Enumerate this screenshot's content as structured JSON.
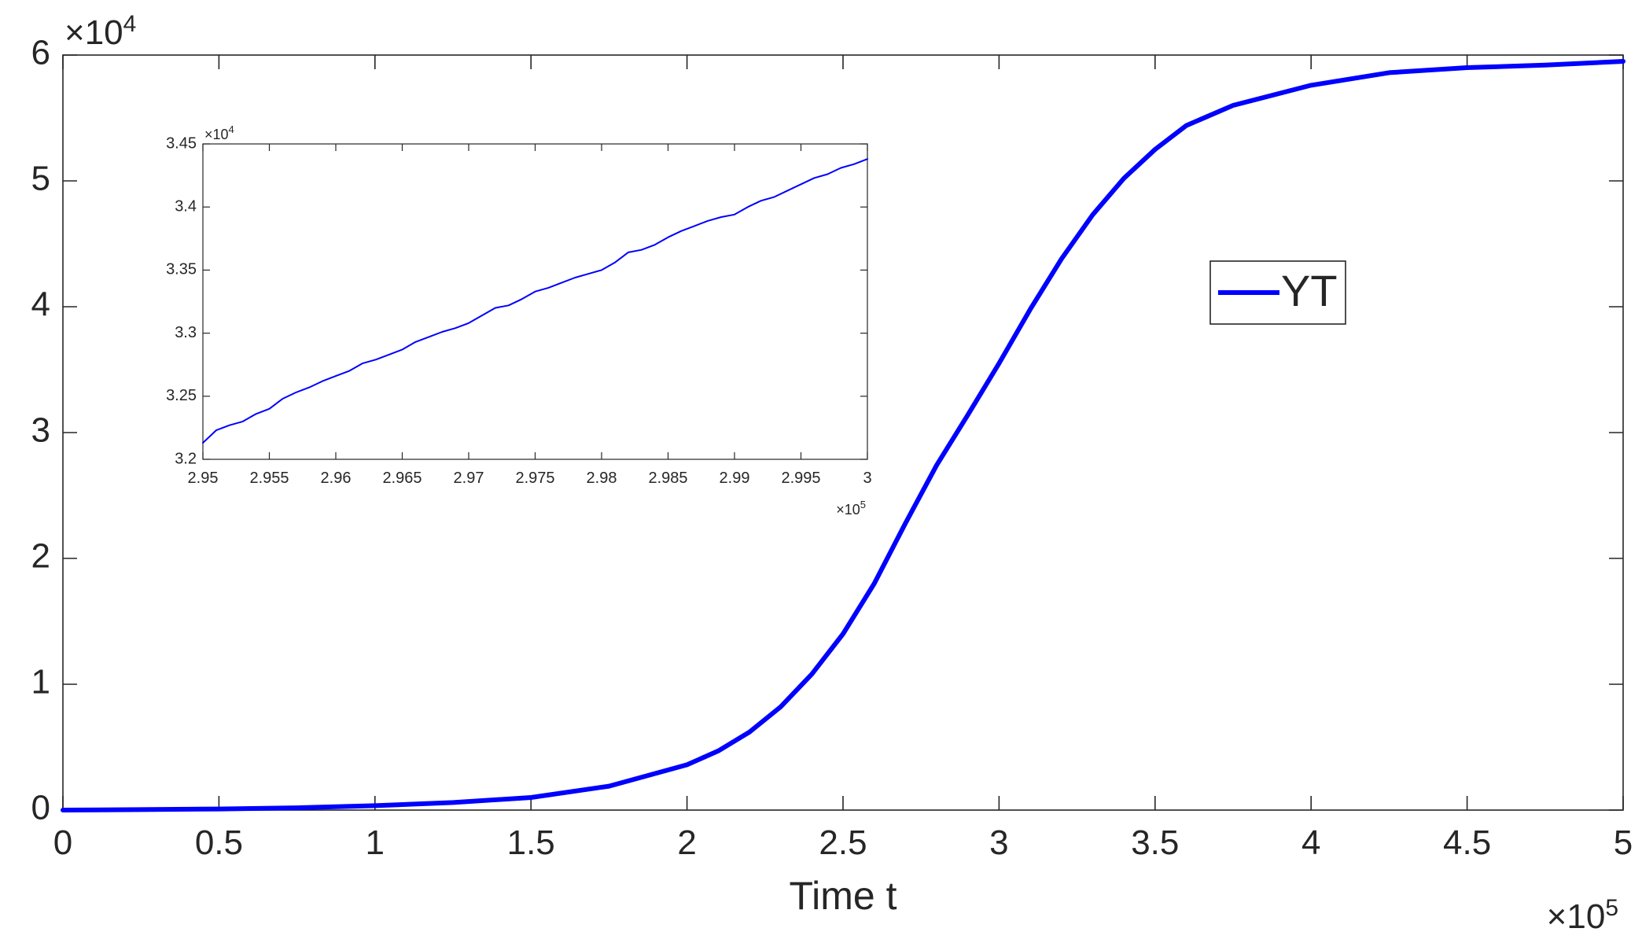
{
  "chart_data": [
    {
      "type": "line",
      "title": "",
      "xlabel": "Time t",
      "ylabel": "",
      "xlim": [
        0,
        500000
      ],
      "ylim": [
        0,
        60000
      ],
      "x_ticks": [
        0,
        50000,
        100000,
        150000,
        200000,
        250000,
        300000,
        350000,
        400000,
        450000,
        500000
      ],
      "x_tick_labels": [
        "0",
        "0.5",
        "1",
        "1.5",
        "2",
        "2.5",
        "3",
        "3.5",
        "4",
        "4.5",
        "5"
      ],
      "y_ticks": [
        0,
        10000,
        20000,
        30000,
        40000,
        50000,
        60000
      ],
      "y_tick_labels": [
        "0",
        "1",
        "2",
        "3",
        "4",
        "5",
        "6"
      ],
      "x_multiplier": {
        "base": "×10",
        "exp": "5"
      },
      "y_multiplier": {
        "base": "×10",
        "exp": "4"
      },
      "grid": false,
      "legend": {
        "position": "upper-right-middle",
        "entries": [
          "YT"
        ]
      },
      "series": [
        {
          "name": "YT",
          "color": "#0000ff",
          "x": [
            0,
            25000,
            50000,
            75000,
            100000,
            125000,
            150000,
            175000,
            200000,
            210000,
            220000,
            230000,
            240000,
            250000,
            260000,
            270000,
            280000,
            290000,
            300000,
            310000,
            320000,
            330000,
            340000,
            350000,
            360000,
            375000,
            400000,
            425000,
            450000,
            475000,
            500000
          ],
          "y": [
            0,
            40,
            90,
            180,
            350,
            600,
            1000,
            1900,
            3600,
            4700,
            6200,
            8200,
            10800,
            14000,
            18000,
            22800,
            27400,
            31400,
            35500,
            39800,
            43800,
            47300,
            50200,
            52500,
            54400,
            56000,
            57600,
            58600,
            59000,
            59200,
            59500
          ]
        }
      ]
    },
    {
      "type": "line",
      "title": "",
      "xlabel": "",
      "ylabel": "",
      "xlim": [
        295000,
        300000
      ],
      "ylim": [
        32000,
        34500
      ],
      "x_ticks": [
        295000,
        295500,
        296000,
        296500,
        297000,
        297500,
        298000,
        298500,
        299000,
        299500,
        300000
      ],
      "x_tick_labels": [
        "2.95",
        "2.955",
        "2.96",
        "2.965",
        "2.97",
        "2.975",
        "2.98",
        "2.985",
        "2.99",
        "2.995",
        "3"
      ],
      "y_ticks": [
        32000,
        32500,
        33000,
        33500,
        34000,
        34500
      ],
      "y_tick_labels": [
        "3.2",
        "3.25",
        "3.3",
        "3.35",
        "3.4",
        "3.45"
      ],
      "x_multiplier": {
        "base": "×10",
        "exp": "5"
      },
      "y_multiplier": {
        "base": "×10",
        "exp": "4"
      },
      "grid": false,
      "series": [
        {
          "color": "#0000ff",
          "x": [
            295000,
            295100,
            295200,
            295300,
            295400,
            295500,
            295600,
            295700,
            295800,
            295900,
            296000,
            296100,
            296200,
            296300,
            296400,
            296500,
            296600,
            296700,
            296800,
            296900,
            297000,
            297100,
            297200,
            297300,
            297400,
            297500,
            297600,
            297700,
            297800,
            297900,
            298000,
            298100,
            298200,
            298300,
            298400,
            298500,
            298600,
            298700,
            298800,
            298900,
            299000,
            299100,
            299200,
            299300,
            299400,
            299500,
            299600,
            299700,
            299800,
            299900,
            300000
          ],
          "y": [
            32130,
            32230,
            32270,
            32300,
            32360,
            32400,
            32480,
            32530,
            32570,
            32620,
            32660,
            32700,
            32760,
            32790,
            32830,
            32870,
            32930,
            32970,
            33010,
            33040,
            33080,
            33140,
            33200,
            33220,
            33270,
            33330,
            33360,
            33400,
            33440,
            33470,
            33500,
            33560,
            33640,
            33660,
            33700,
            33760,
            33810,
            33850,
            33890,
            33920,
            33940,
            34000,
            34050,
            34080,
            34130,
            34180,
            34230,
            34260,
            34310,
            34340,
            34380
          ]
        }
      ]
    }
  ]
}
